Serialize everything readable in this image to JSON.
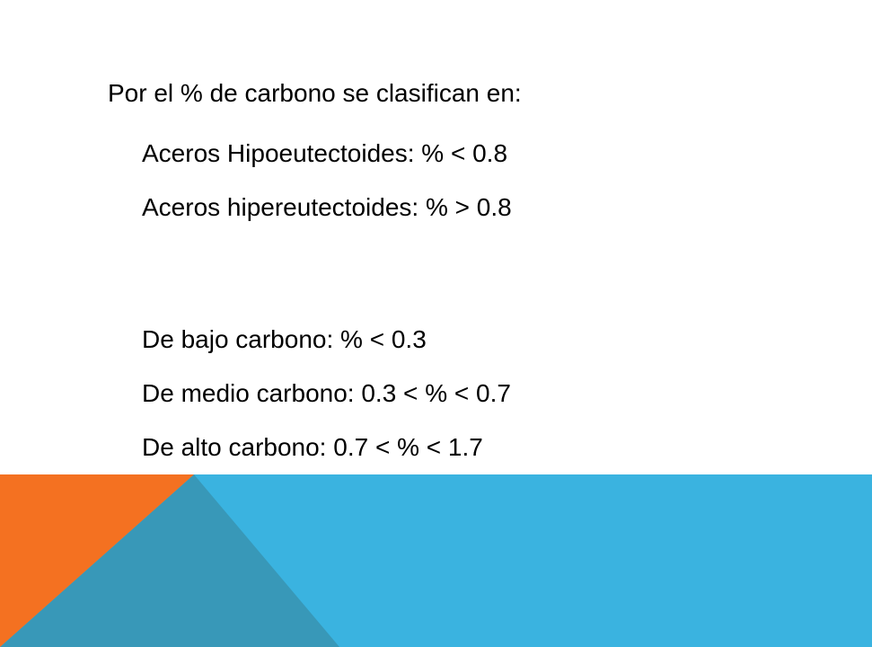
{
  "slide": {
    "heading": "Por el % de carbono se clasifican  en:",
    "group_eutectoid": [
      "Aceros Hipoeutectoides:  % < 0.8",
      "Aceros hipereutectoides:  % > 0.8"
    ],
    "group_carbon": [
      "De bajo carbono: % < 0.3",
      "De medio carbono: 0.3 < % < 0.7",
      "De alto carbono: 0.7 < % < 1.7"
    ]
  },
  "colors": {
    "background": "#ffffff",
    "band_blue": "#3ab3e0",
    "triangle_teal": "#3898b8",
    "triangle_orange": "#f47121"
  }
}
